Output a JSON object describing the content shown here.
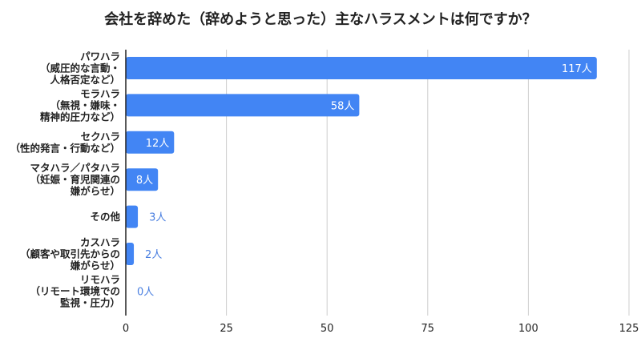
{
  "chart_data": {
    "type": "bar",
    "orientation": "horizontal",
    "title": "会社を辞めた（辞めようと思った）主なハラスメントは何ですか？",
    "categories": [
      [
        "パワハラ",
        "（威圧的な言動・",
        "人格否定など）"
      ],
      [
        "モラハラ",
        "（無視・嫌味・",
        "精神的圧力など）"
      ],
      [
        "セクハラ",
        "（性的発言・行動など）"
      ],
      [
        "マタハラ／パタハラ",
        "（妊娠・育児関連の",
        "嫌がらせ）"
      ],
      [
        "その他"
      ],
      [
        "カスハラ",
        "（顧客や取引先からの",
        "嫌がらせ）"
      ],
      [
        "リモハラ",
        "（リモート環境での",
        "監視・圧力）"
      ]
    ],
    "values": [
      117,
      58,
      12,
      8,
      3,
      2,
      0
    ],
    "data_labels": [
      "117人",
      "58人",
      "12人",
      "8人",
      "3人",
      "2人",
      "0人"
    ],
    "xlim": [
      0,
      125
    ],
    "xticks": [
      0,
      25,
      50,
      75,
      100,
      125
    ],
    "xlabel": "",
    "ylabel": "",
    "grid": true,
    "legend": "none",
    "colors": {
      "bar": "#4285f4",
      "label_outside": "#4a7fe0",
      "label_inside": "#ffffff",
      "grid": "#cccccc",
      "axis": "#222222"
    }
  }
}
